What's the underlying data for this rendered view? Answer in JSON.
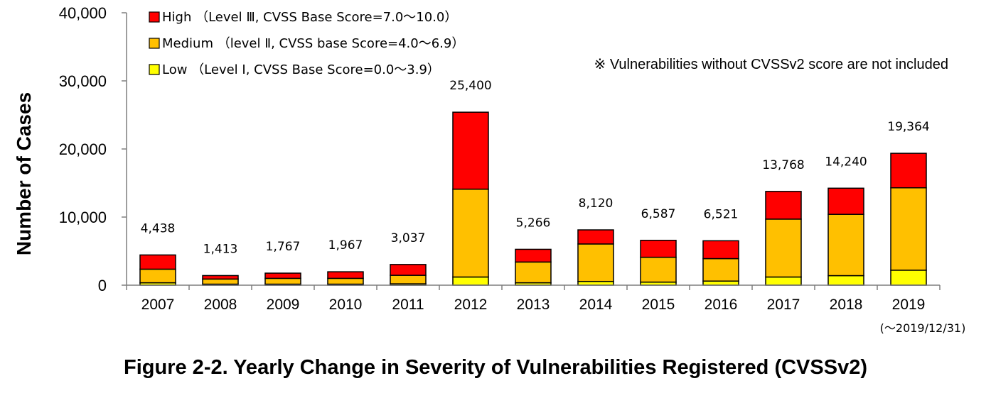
{
  "caption": "Figure 2-2. Yearly Change in Severity of Vulnerabilities Registered (CVSSv2)",
  "note": "※ Vulnerabilities without CVSSv2 score are not included",
  "last_year_note": "(～2019/12/31)",
  "chart_data": {
    "type": "bar",
    "stacked": true,
    "ylabel": "Number of Cases",
    "xlabel": "",
    "ylim": [
      0,
      40000
    ],
    "yticks": [
      0,
      10000,
      20000,
      30000,
      40000
    ],
    "ytick_labels": [
      "0",
      "10,000",
      "20,000",
      "30,000",
      "40,000"
    ],
    "grid": false,
    "legend_position": "top-left",
    "categories": [
      "2007",
      "2008",
      "2009",
      "2010",
      "2011",
      "2012",
      "2013",
      "2014",
      "2015",
      "2016",
      "2017",
      "2018",
      "2019"
    ],
    "series": [
      {
        "name": "Low （Level Ⅰ, CVSS Base Score=0.0～3.9）",
        "color": "#ffff00",
        "values": [
          350,
          150,
          150,
          150,
          200,
          1200,
          350,
          550,
          450,
          600,
          1200,
          1400,
          2200
        ]
      },
      {
        "name": "Medium （level Ⅱ, CVSS base Score=4.0～6.9）",
        "color": "#ffc000",
        "values": [
          2000,
          750,
          850,
          850,
          1250,
          12900,
          3050,
          5500,
          3650,
          3300,
          8500,
          9000,
          12100
        ]
      },
      {
        "name": "High （Level Ⅲ, CVSS Base Score=7.0～10.0）",
        "color": "#ff0000",
        "values": [
          2088,
          513,
          767,
          967,
          1587,
          11300,
          1866,
          2070,
          2487,
          2621,
          4068,
          3840,
          5064
        ]
      }
    ],
    "totals": [
      4438,
      1413,
      1767,
      1967,
      3037,
      25400,
      5266,
      8120,
      6587,
      6521,
      13768,
      14240,
      19364
    ],
    "total_labels": [
      "4,438",
      "1,413",
      "1,767",
      "1,967",
      "3,037",
      "25,400",
      "5,266",
      "8,120",
      "6,587",
      "6,521",
      "13,768",
      "14,240",
      "19,364"
    ]
  }
}
